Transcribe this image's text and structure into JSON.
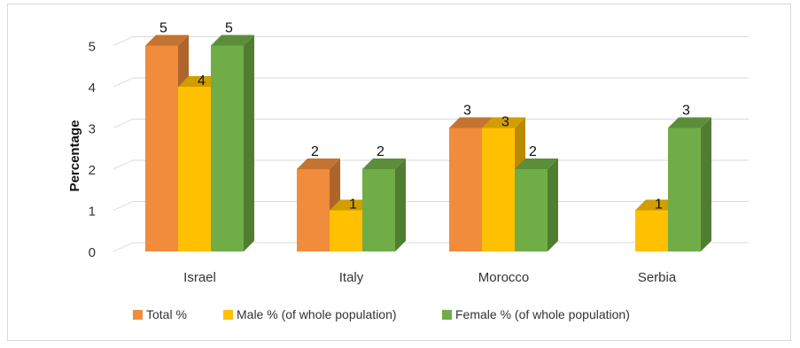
{
  "chart_data": {
    "type": "bar",
    "categories": [
      "Israel",
      "Italy",
      "Morocco",
      "Serbia"
    ],
    "series": [
      {
        "name": "Total %",
        "values": [
          5,
          2,
          3,
          null
        ],
        "color": "#F08C3C"
      },
      {
        "name": "Male % (of whole population)",
        "values": [
          4,
          1,
          3,
          1
        ],
        "color": "#FFC000"
      },
      {
        "name": "Female % (of whole population)",
        "values": [
          5,
          2,
          2,
          3
        ],
        "color": "#70AD47"
      }
    ],
    "title": "",
    "xlabel": "",
    "ylabel": "Percentage",
    "ylim": [
      0,
      5
    ],
    "yticks": [
      0,
      1,
      2,
      3,
      4,
      5
    ],
    "grid": true,
    "legend_position": "bottom",
    "style": "3d-column"
  }
}
